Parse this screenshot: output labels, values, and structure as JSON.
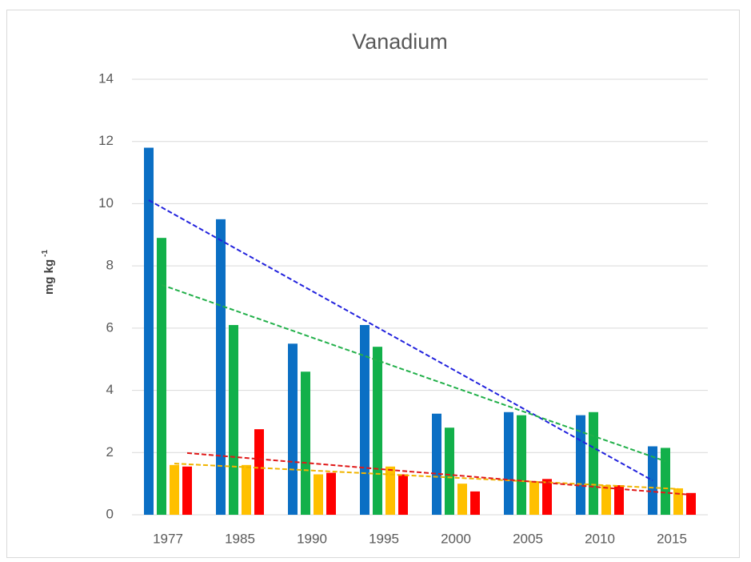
{
  "chart_data": {
    "type": "bar",
    "title": "Vanadium",
    "y_label": "mg kg",
    "y_label_superscript": "-1",
    "categories": [
      "1977",
      "1985",
      "1990",
      "1995",
      "2000",
      "2005",
      "2010",
      "2015"
    ],
    "series": [
      {
        "color": "#0b6fc4",
        "trend_color": "#2222dd",
        "values": [
          11.8,
          9.5,
          5.5,
          6.1,
          3.25,
          3.3,
          3.2,
          2.2
        ]
      },
      {
        "color": "#12b04a",
        "trend_color": "#22b04a",
        "values": [
          8.9,
          6.1,
          4.6,
          5.4,
          2.8,
          3.2,
          3.3,
          2.15
        ]
      },
      {
        "color": "#ffc000",
        "trend_color": "#f0b400",
        "values": [
          1.6,
          1.6,
          1.3,
          1.55,
          1.0,
          1.05,
          0.95,
          0.85
        ]
      },
      {
        "color": "#ff0000",
        "trend_color": "#e01818",
        "values": [
          1.55,
          2.75,
          1.35,
          1.3,
          0.75,
          1.15,
          0.95,
          0.7
        ]
      }
    ],
    "trendline": "linear",
    "ylim": [
      0,
      14
    ],
    "yticks": [
      0,
      2,
      4,
      6,
      8,
      10,
      12,
      14
    ],
    "grid": true
  }
}
